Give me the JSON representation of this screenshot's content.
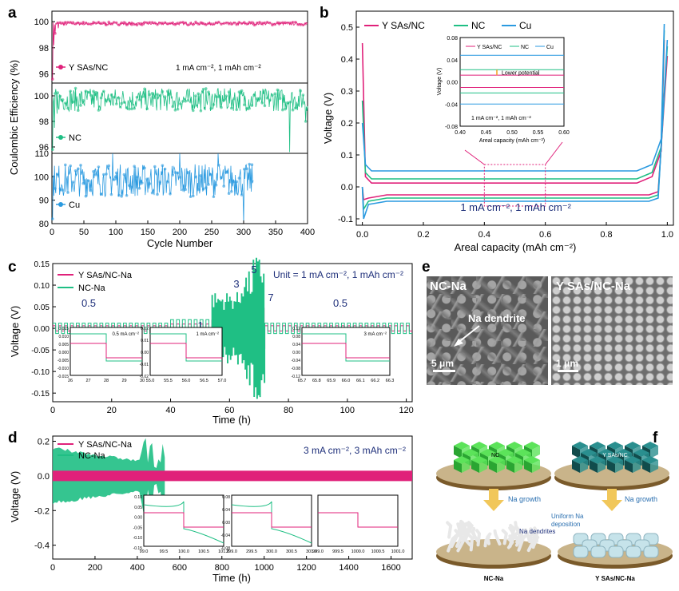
{
  "panels": {
    "a": "a",
    "b": "b",
    "c": "c",
    "d": "d",
    "e": "e",
    "f": "f"
  },
  "chart_data": [
    {
      "id": "a",
      "type": "scatter",
      "xlabel": "Cycle Number",
      "ylabel": "Coulombic Efficiency (%)",
      "xlim": [
        0,
        400
      ],
      "xticks": [
        0,
        50,
        100,
        150,
        200,
        250,
        300,
        350,
        400
      ],
      "condition": "1 mA cm⁻², 1 mAh cm⁻²",
      "subplots": [
        {
          "name": "Y SAs/NC",
          "color": "#e0217a",
          "ylim": [
            95.3,
            100.8
          ],
          "yticks": [
            96,
            98,
            100
          ],
          "cycles": 400,
          "mean": 99.85,
          "noise": 0.12,
          "points": [
            [
              1,
              95.6
            ],
            [
              3,
              98.2
            ],
            [
              5,
              99.1
            ],
            [
              10,
              99.5
            ],
            [
              20,
              99.7
            ]
          ]
        },
        {
          "name": "NC",
          "color": "#1fbf84",
          "ylim": [
            95.5,
            101
          ],
          "yticks": [
            96,
            98,
            100
          ],
          "cycles": 400,
          "mean": 99.7,
          "noise": 0.9,
          "points": [
            [
              1,
              95.8
            ],
            [
              4,
              97.5
            ],
            [
              8,
              98.6
            ],
            [
              372,
              95.6
            ],
            [
              397,
              98.0
            ]
          ]
        },
        {
          "name": "Cu",
          "color": "#2a9ae0",
          "ylim": [
            80,
            110
          ],
          "yticks": [
            80,
            90,
            100,
            110
          ],
          "cycles": 315,
          "mean": 98.5,
          "noise": 7,
          "points": [
            [
              1,
              82
            ],
            [
              5,
              95
            ],
            [
              95,
              110
            ],
            [
              200,
              110
            ],
            [
              260,
              110
            ],
            [
              300,
              80
            ]
          ]
        }
      ]
    },
    {
      "id": "b",
      "type": "line",
      "xlabel": "Areal capacity (mAh cm⁻²)",
      "ylabel": "Voltage (V)",
      "xlim": [
        -0.02,
        1.02
      ],
      "ylim": [
        -0.12,
        0.55
      ],
      "xticks": [
        0.0,
        0.2,
        0.4,
        0.6,
        0.8,
        1.0
      ],
      "yticks": [
        -0.1,
        0.0,
        0.1,
        0.2,
        0.3,
        0.4,
        0.5
      ],
      "annotation": "1 mA cm⁻², 1 mAh cm⁻²",
      "series": [
        {
          "name": "Y SAs/NC",
          "color": "#e0217a",
          "plating": -0.025,
          "stripping": 0.012,
          "nucleation": -0.04,
          "peak": 0.45,
          "end": 0.46
        },
        {
          "name": "NC",
          "color": "#1fbf84",
          "plating": -0.035,
          "stripping": 0.025,
          "nucleation": -0.07,
          "peak": 0.27,
          "end": 0.49
        },
        {
          "name": "Cu",
          "color": "#2a9ae0",
          "plating": -0.045,
          "stripping": 0.05,
          "nucleation": -0.1,
          "peak": 0.2,
          "end": 0.51
        }
      ],
      "inset": {
        "xlabel": "Areal capacity (mAh cm⁻²)",
        "ylabel": "Voltage (V)",
        "xlim": [
          0.4,
          0.6
        ],
        "ylim": [
          -0.08,
          0.08
        ],
        "xticks": [
          0.4,
          0.45,
          0.5,
          0.55,
          0.6
        ],
        "yticks": [
          -0.08,
          -0.04,
          0.0,
          0.04,
          0.08
        ],
        "lines": [
          {
            "name": "Y SAs/NC",
            "color": "#e0217a",
            "values": [
              0.012,
              -0.01
            ]
          },
          {
            "name": "NC",
            "color": "#1fbf84",
            "values": [
              0.022,
              -0.02
            ]
          },
          {
            "name": "Cu",
            "color": "#2a9ae0",
            "values": [
              0.048,
              -0.04
            ]
          }
        ],
        "annotation": "Lower potential",
        "condition": "1 mA cm⁻², 1 mAh cm⁻²"
      }
    },
    {
      "id": "c",
      "type": "line",
      "xlabel": "Time (h)",
      "ylabel": "Voltage (V)",
      "xlim": [
        0,
        122
      ],
      "ylim": [
        -0.17,
        0.15
      ],
      "xticks": [
        0,
        20,
        40,
        60,
        80,
        100,
        120
      ],
      "yticks": [
        -0.15,
        -0.1,
        -0.05,
        0.0,
        0.05,
        0.1,
        0.15
      ],
      "unit_label": "Unit = 1 mA cm⁻², 1 mAh cm⁻²",
      "segments": [
        {
          "label": "0.5",
          "start": 0,
          "end": 40,
          "yna": 0.006,
          "nc": 0.012
        },
        {
          "label": "1",
          "start": 40,
          "end": 54,
          "yna": 0.01,
          "nc": 0.02
        },
        {
          "label": "3",
          "start": 54,
          "end": 64,
          "yna": 0.03,
          "nc": 0.07
        },
        {
          "label": "5",
          "start": 64,
          "end": 68,
          "yna": 0.05,
          "nc": 0.11
        },
        {
          "label": "7",
          "start": 68,
          "end": 72,
          "yna": 0.07,
          "nc": 0.14
        },
        {
          "label": "0.5",
          "start": 72,
          "end": 122,
          "yna": 0.006,
          "nc": 0.012
        }
      ],
      "series": [
        {
          "name": "Y SAs/NC-Na",
          "color": "#e0217a"
        },
        {
          "name": "NC-Na",
          "color": "#1fbf84"
        }
      ],
      "insets": [
        {
          "label": "0.5 mA cm⁻²",
          "xticks": [
            "26",
            "27",
            "28",
            "29",
            "30"
          ],
          "yticks": [
            "0.015",
            "0.010",
            "0.005",
            "0.000",
            "-0.005",
            "-0.010",
            "-0.015"
          ]
        },
        {
          "label": "1 mA cm⁻²",
          "xticks": [
            "55.0",
            "55.5",
            "56.0",
            "56.5",
            "57.0"
          ],
          "yticks": [
            "0.02",
            "0.01",
            "0.00",
            "-0.01",
            "-0.02"
          ]
        },
        {
          "label": "3 mA cm⁻²",
          "xticks": [
            "65.7",
            "65.8",
            "65.9",
            "66.0",
            "66.1",
            "66.2",
            "66.3"
          ],
          "yticks": [
            "0.12",
            "0.08",
            "0.04",
            "0.00",
            "-0.04",
            "-0.08",
            "-0.12"
          ]
        }
      ]
    },
    {
      "id": "d",
      "type": "line",
      "xlabel": "Time (h)",
      "ylabel": "Voltage (V)",
      "xlim": [
        0,
        1700
      ],
      "ylim": [
        -0.48,
        0.23
      ],
      "xticks": [
        0,
        200,
        400,
        600,
        800,
        1000,
        1200,
        1400,
        1600
      ],
      "yticks": [
        -0.4,
        -0.2,
        0.0,
        0.2
      ],
      "condition": "3 mA cm⁻², 3 mAh cm⁻²",
      "series": [
        {
          "name": "Y SAs/NC-Na",
          "color": "#e0217a",
          "amplitude": 0.03,
          "end": 1700
        },
        {
          "name": "NC-Na",
          "color": "#1fbf84",
          "amplitude_start": 0.17,
          "amplitude_end": 0.07,
          "end": 530
        }
      ],
      "insets": [
        {
          "xticks": [
            "99.0",
            "99.5",
            "100.0",
            "100.5",
            "101.0"
          ],
          "yticks": [
            "0.10",
            "0.05",
            "0.00",
            "-0.05",
            "-0.10",
            "-0.15"
          ]
        },
        {
          "xticks": [
            "299.0",
            "299.5",
            "300.0",
            "300.5",
            "301.0"
          ],
          "yticks": [
            "0.08",
            "0.04",
            "0.00",
            "-0.04",
            "-0.08"
          ]
        },
        {
          "xticks": [
            "999.0",
            "999.5",
            "1000.0",
            "1000.5",
            "1001.0"
          ],
          "yticks": []
        }
      ]
    }
  ],
  "panel_e": {
    "left_label": "NC-Na",
    "right_label": "Y SAs/NC-Na",
    "arrow_label": "Na dendrite",
    "scale_left": "5 μm",
    "scale_right": "1 μm"
  },
  "panel_f": {
    "cube_left": "NC",
    "cube_right": "Y SAs/NC",
    "growth_left": "Na growth",
    "growth_right": "Na growth",
    "uniform": "Uniform Na deposition",
    "dendrites": "Na dendrites",
    "bottom_left": "NC-Na",
    "bottom_right": "Y SAs/NC-Na",
    "colors": {
      "nc": "#3fd64a",
      "ysa": "#1e6f6f",
      "na": "#b8d6de",
      "disk": "#7a5a2a"
    }
  }
}
